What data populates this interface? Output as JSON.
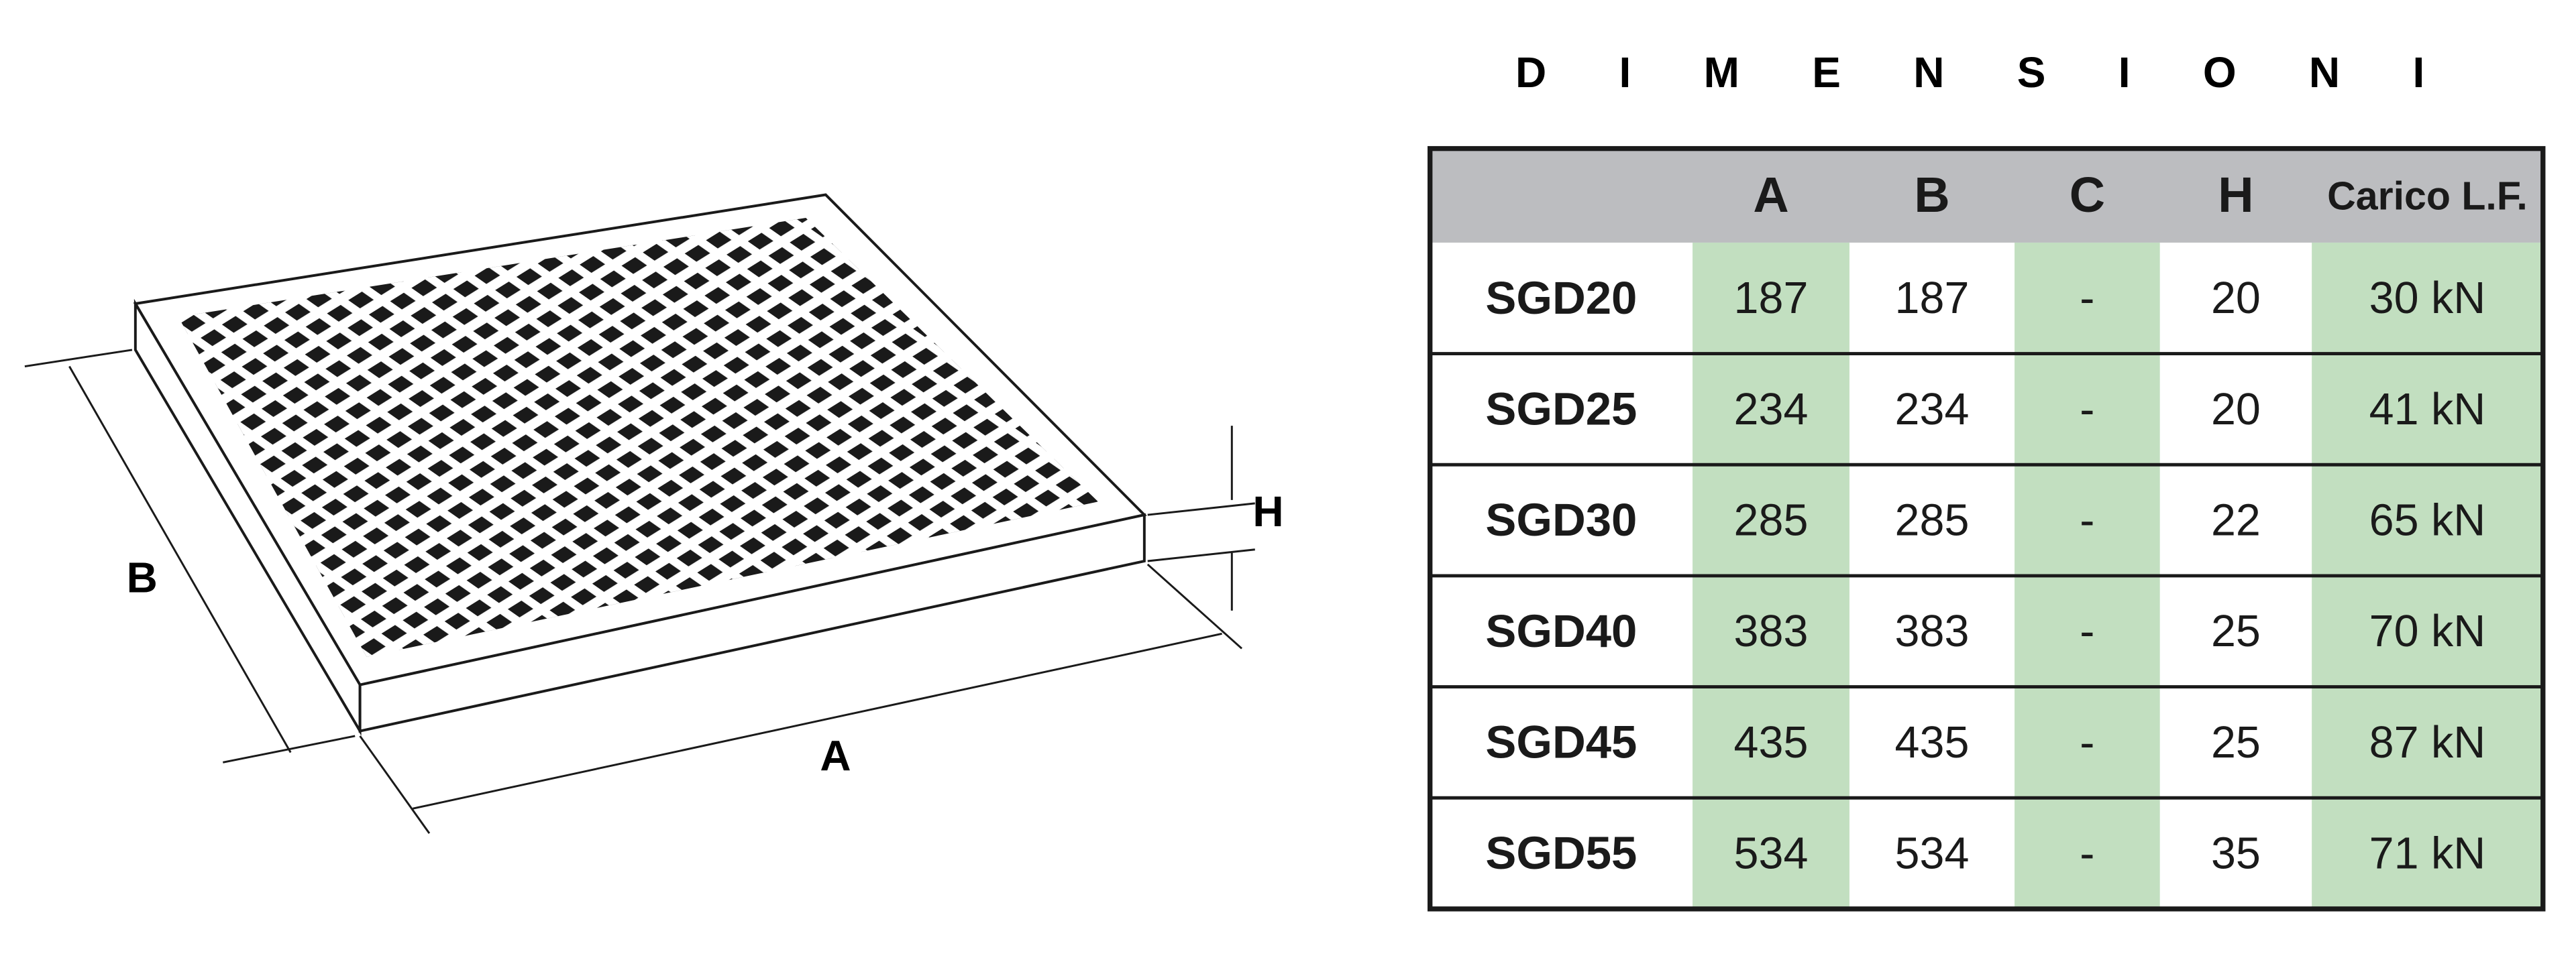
{
  "title": "DIMENSIONI",
  "drawing": {
    "labels": {
      "a": "A",
      "b": "B",
      "h": "H"
    }
  },
  "table": {
    "headers": [
      "A",
      "B",
      "C",
      "H",
      "Carico L.F."
    ],
    "rows": [
      [
        "SGD20",
        187,
        187,
        "-",
        20,
        "30 kN"
      ],
      [
        "SGD25",
        234,
        234,
        "-",
        20,
        "41 kN"
      ],
      [
        "SGD30",
        285,
        285,
        "-",
        22,
        "65 kN"
      ],
      [
        "SGD40",
        383,
        383,
        "-",
        25,
        "70 kN"
      ],
      [
        "SGD45",
        435,
        435,
        "-",
        25,
        "87 kN"
      ],
      [
        "SGD55",
        534,
        534,
        "-",
        35,
        "71 kN"
      ]
    ]
  }
}
